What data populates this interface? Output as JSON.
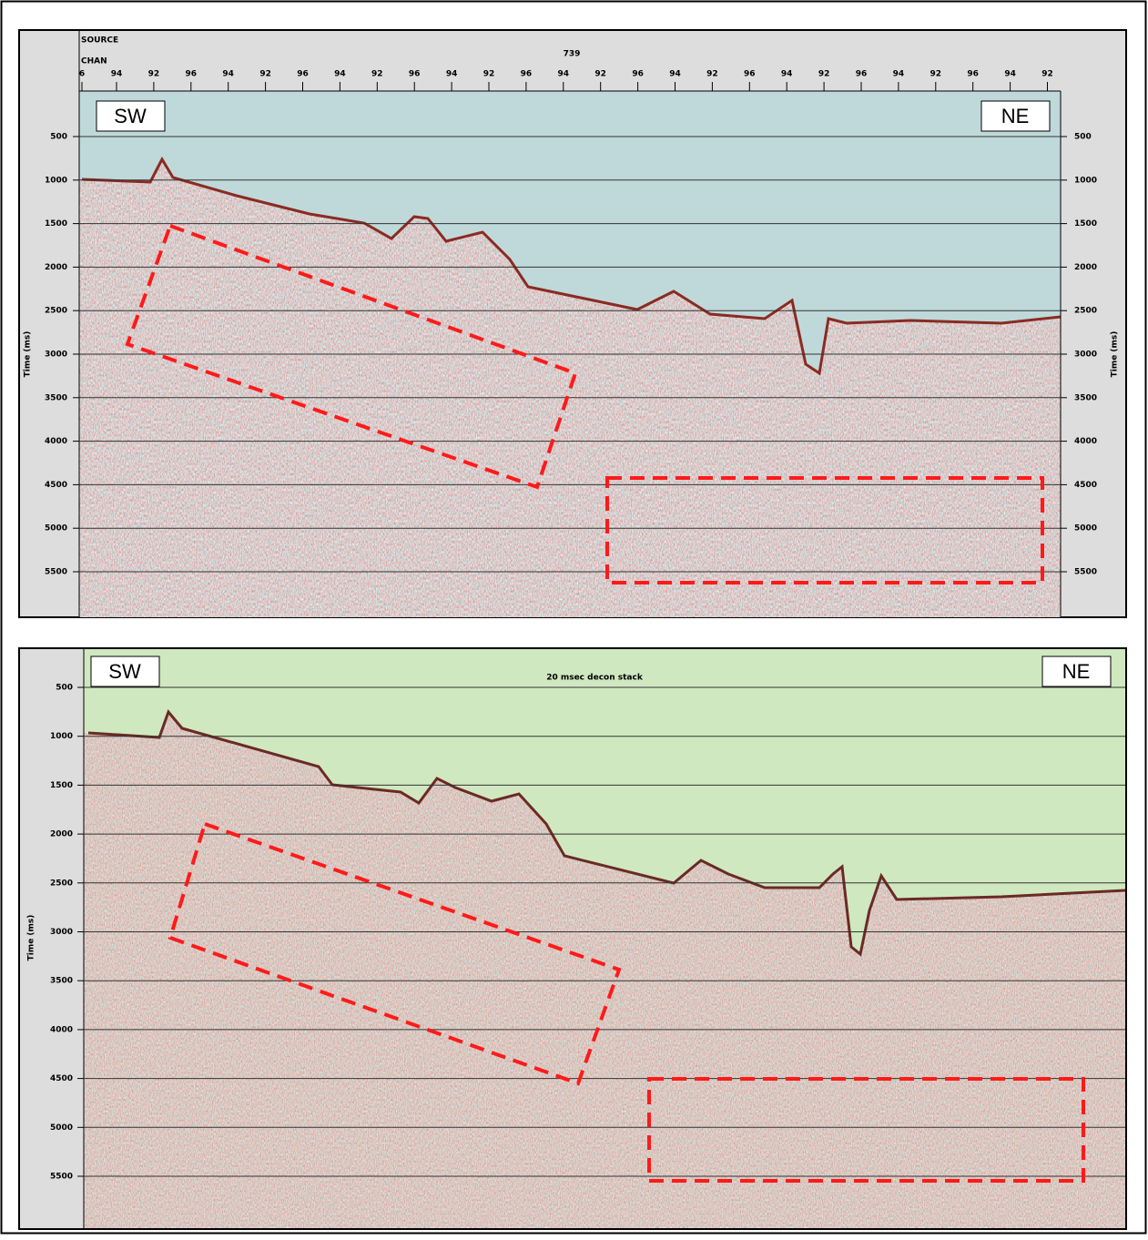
{
  "top_panel": {
    "header": {
      "source_label": "SOURCE",
      "chan_label": "CHAN",
      "source_number": "739",
      "channels": [
        "6",
        "94",
        "92",
        "96",
        "94",
        "92",
        "96",
        "94",
        "92",
        "96",
        "94",
        "92",
        "96",
        "94",
        "92",
        "96",
        "94",
        "92",
        "96",
        "94",
        "92",
        "96",
        "94",
        "92",
        "96",
        "94",
        "92"
      ]
    },
    "left_label": "SW",
    "right_label": "NE",
    "axis_title": "Time (ms)",
    "ticks": [
      500,
      1000,
      1500,
      2000,
      2500,
      3000,
      3500,
      4000,
      4500,
      5000,
      5500
    ]
  },
  "bottom_panel": {
    "title": "20 msec decon stack",
    "left_label": "SW",
    "right_label": "NE",
    "axis_title": "Time (ms)",
    "ticks": [
      500,
      1000,
      1500,
      2000,
      2500,
      3000,
      3500,
      4000,
      4500,
      5000,
      5500
    ]
  }
}
